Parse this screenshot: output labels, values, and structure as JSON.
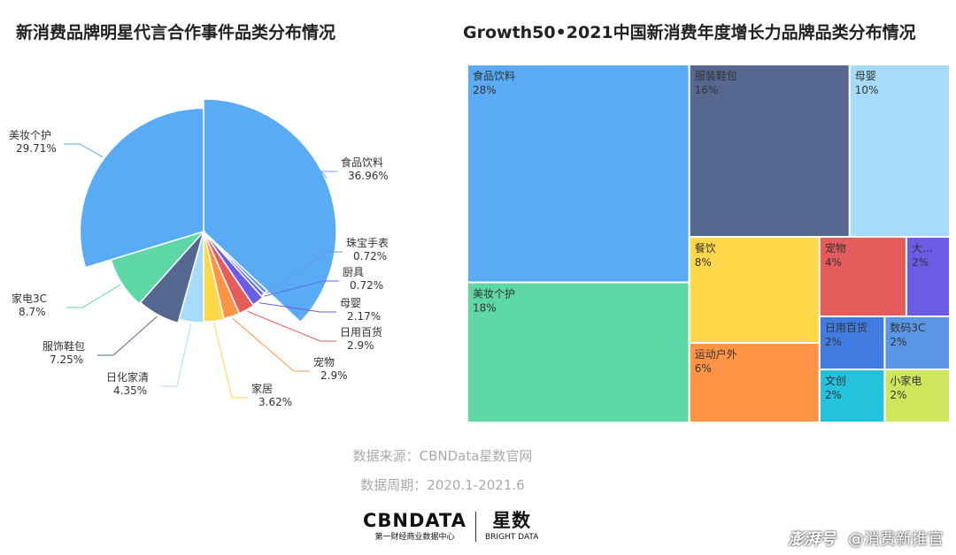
{
  "titles": {
    "pie": "新消费品牌明星代言合作事件品类分布情况",
    "treemap": "Growth50•2021中国新消费年度增长力品牌品类分布情况"
  },
  "footer": {
    "source": "数据来源：CBNData星数官网",
    "period": "数据周期：2020.1-2021.6"
  },
  "brand": {
    "cbn": "CBNDATA",
    "cbn_sub": "第一财经商业数据中心",
    "xingshu": "星数",
    "xingshu_sub": "BRIGHT DATA"
  },
  "watermark": {
    "logo": "澎湃号",
    "account": "@消费新推官"
  },
  "chart_data": [
    {
      "type": "pie",
      "title": "新消费品牌明星代言合作事件品类分布情况",
      "slices": [
        {
          "label": "食品饮料",
          "value": 36.96,
          "display": "36.96%",
          "color": "#5aabf5"
        },
        {
          "label": "珠宝手表",
          "value": 0.72,
          "display": "0.72%",
          "color": "#6f8fe8"
        },
        {
          "label": "厨具",
          "value": 0.72,
          "display": "0.72%",
          "color": "#5a6ee0"
        },
        {
          "label": "母婴",
          "value": 2.17,
          "display": "2.17%",
          "color": "#6b5be5"
        },
        {
          "label": "日用百货",
          "value": 2.9,
          "display": "2.9%",
          "color": "#e65c5c"
        },
        {
          "label": "宠物",
          "value": 2.9,
          "display": "2.9%",
          "color": "#ff9447"
        },
        {
          "label": "家居",
          "value": 3.62,
          "display": "3.62%",
          "color": "#ffd84a"
        },
        {
          "label": "日化家清",
          "value": 4.35,
          "display": "4.35%",
          "color": "#a6dcf7"
        },
        {
          "label": "服饰鞋包",
          "value": 7.25,
          "display": "7.25%",
          "color": "#56688f"
        },
        {
          "label": "家电3C",
          "value": 8.7,
          "display": "8.7%",
          "color": "#5ed8a6"
        },
        {
          "label": "美妆个护",
          "value": 29.71,
          "display": "29.71%",
          "color": "#5aabf5"
        }
      ]
    },
    {
      "type": "treemap",
      "title": "Growth50•2021中国新消费年度增长力品牌品类分布情况",
      "items": [
        {
          "label": "食品饮料",
          "value": 28,
          "display": "28%",
          "color": "#5aabf5"
        },
        {
          "label": "美妆个护",
          "value": 18,
          "display": "18%",
          "color": "#5ed8a6"
        },
        {
          "label": "服装鞋包",
          "value": 16,
          "display": "16%",
          "color": "#56688f"
        },
        {
          "label": "母婴",
          "value": 10,
          "display": "10%",
          "color": "#a6dcf7"
        },
        {
          "label": "餐饮",
          "value": 8,
          "display": "8%",
          "color": "#ffd84a"
        },
        {
          "label": "运动户外",
          "value": 6,
          "display": "6%",
          "color": "#ff9447"
        },
        {
          "label": "宠物",
          "value": 4,
          "display": "4%",
          "color": "#e65c5c"
        },
        {
          "label": "大…",
          "value": 2,
          "display": "2%",
          "color": "#6b5be5"
        },
        {
          "label": "日用百货",
          "value": 2,
          "display": "2%",
          "color": "#3f7be0"
        },
        {
          "label": "文创",
          "value": 2,
          "display": "2%",
          "color": "#23c3dd"
        },
        {
          "label": "数码3C",
          "value": 2,
          "display": "2%",
          "color": "#5b95e5"
        },
        {
          "label": "小家电",
          "value": 2,
          "display": "2%",
          "color": "#cde65c"
        }
      ]
    }
  ]
}
